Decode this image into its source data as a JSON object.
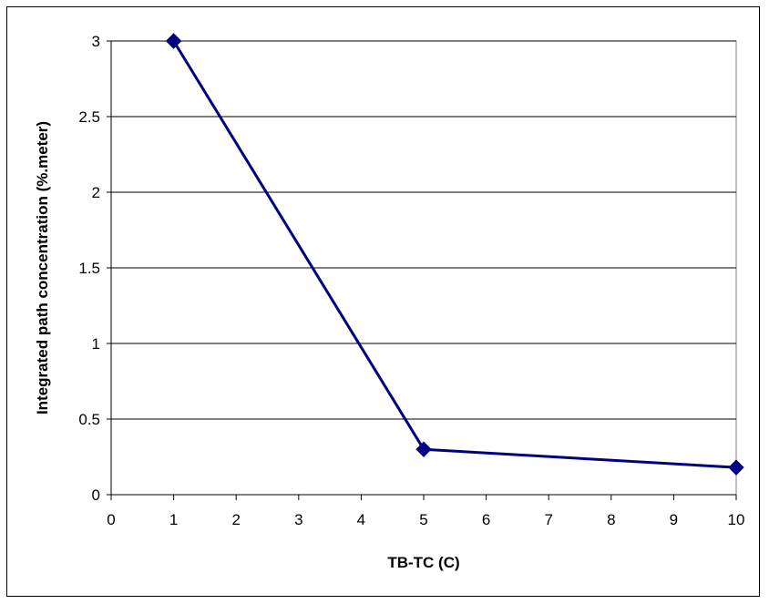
{
  "chart_data": {
    "type": "line",
    "title": "",
    "xlabel": "TB-TC (C)",
    "ylabel": "Integrated path concentration (%.meter)",
    "xlim": [
      0,
      10
    ],
    "ylim": [
      0,
      3
    ],
    "x_ticks": [
      "0",
      "1",
      "2",
      "3",
      "4",
      "5",
      "6",
      "7",
      "8",
      "9",
      "10"
    ],
    "y_ticks": [
      "0",
      "0.5",
      "1",
      "1.5",
      "2",
      "2.5",
      "3"
    ],
    "grid": "horizontal",
    "legend": "none",
    "series": [
      {
        "x": [
          1,
          5,
          10
        ],
        "y": [
          3.0,
          0.3,
          0.18
        ],
        "color": "#000080",
        "marker": "diamond"
      }
    ]
  }
}
